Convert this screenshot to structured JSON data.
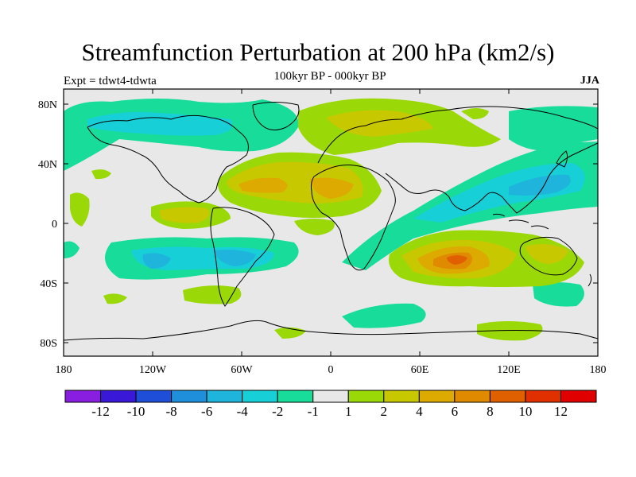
{
  "title": "Streamfunction Perturbation at 200 hPa (km2/s)",
  "subtitle_center": "100kyr BP - 000kyr BP",
  "subtitle_left": "Expt = tdwt4-tdwta",
  "subtitle_right": "JJA",
  "lat_labels": [
    "80N",
    "40N",
    "0",
    "40S",
    "80S"
  ],
  "lon_labels": [
    "180",
    "120W",
    "60W",
    "0",
    "60E",
    "120E",
    "180"
  ],
  "colorbar": {
    "colors": [
      "#8a1ee0",
      "#3a18d8",
      "#1f4fd9",
      "#1f8fdc",
      "#1fb4dc",
      "#17cfd6",
      "#18dc9a",
      "#e8e8e8",
      "#9ad808",
      "#c8c800",
      "#dcaa00",
      "#e08a00",
      "#e06000",
      "#e03000",
      "#e00000"
    ],
    "labels": [
      "-12",
      "-10",
      "-8",
      "-6",
      "-4",
      "-2",
      "-1",
      "1",
      "2",
      "4",
      "6",
      "8",
      "10",
      "12"
    ]
  }
}
